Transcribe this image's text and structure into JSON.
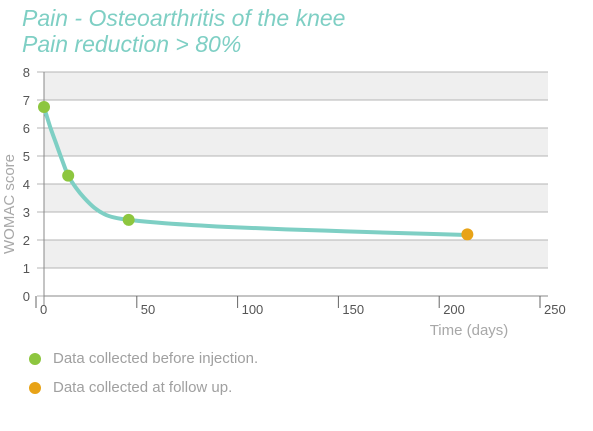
{
  "titles": {
    "line1": "Pain - Osteoarthritis of the knee",
    "line2": "Pain reduction > 80%"
  },
  "colors": {
    "title": "#7ecfc4",
    "curve": "#7ecfc4",
    "before_dot": "#8dc63f",
    "followup_dot": "#e8a317",
    "band": "#efefef",
    "grid": "#b5b5b5",
    "axis_text": "#555555",
    "label_text": "#a8a8a8"
  },
  "legend": [
    {
      "label": "Data collected before injection.",
      "color": "#8dc63f"
    },
    {
      "label": "Data collected at follow up.",
      "color": "#e8a317"
    }
  ],
  "chart_data": {
    "type": "line",
    "title": "Pain - Osteoarthritis of the knee",
    "subtitle": "Pain reduction > 80%",
    "xlabel": "Time (days)",
    "ylabel": "WOMAC score",
    "xlim": [
      0,
      250
    ],
    "ylim": [
      0,
      8
    ],
    "xticks": [
      0,
      50,
      100,
      150,
      200,
      250
    ],
    "yticks": [
      0,
      1,
      2,
      3,
      4,
      5,
      6,
      7,
      8
    ],
    "grid": true,
    "legend_position": "bottom-left",
    "curve": {
      "x": [
        0,
        3,
        6,
        9,
        12,
        16,
        20,
        25,
        30,
        35,
        42,
        60,
        90,
        120,
        150,
        180,
        210
      ],
      "y": [
        6.75,
        6.05,
        5.45,
        4.85,
        4.3,
        3.85,
        3.5,
        3.15,
        2.92,
        2.8,
        2.72,
        2.6,
        2.47,
        2.38,
        2.31,
        2.24,
        2.18
      ]
    },
    "series": [
      {
        "name": "Data collected before injection.",
        "color": "#8dc63f",
        "points": [
          {
            "x": 0,
            "y": 6.75
          },
          {
            "x": 12,
            "y": 4.3
          },
          {
            "x": 42,
            "y": 2.72
          }
        ]
      },
      {
        "name": "Data collected at follow up.",
        "color": "#e8a317",
        "points": [
          {
            "x": 210,
            "y": 2.2
          }
        ]
      }
    ]
  }
}
